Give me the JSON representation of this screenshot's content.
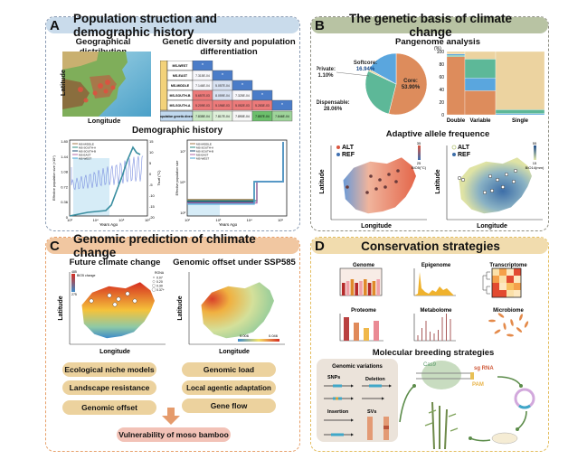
{
  "panels": {
    "a": {
      "letter": "A",
      "title": "Population struction and demographic history",
      "geo_title": "Geographical distribution",
      "geo_xlabel": "Longitude",
      "geo_ylabel": "Latitude",
      "gd_title_1": "Genetic diversity and population",
      "gd_title_2": "differentiation",
      "fst_label": "Inter-population differentiation (Fst)",
      "pi_label": "Intra-population genetic diversity (π)",
      "populations": [
        "MS-WEST",
        "MS-EAST",
        "MS-MIDDLE",
        "MS-SOUTH-B",
        "MS-SOUTH-A"
      ],
      "fst_rows": [
        [
          "*"
        ],
        [
          "7.315E-04",
          "*"
        ],
        [
          "7.146E-04",
          "5.057E-04",
          "*"
        ],
        [
          "5.657E-03",
          "8.059E-04",
          "7.325E-04",
          "*"
        ],
        [
          "5.209E-03",
          "5.196E-03",
          "5.052E-03",
          "5.283E-03",
          "*"
        ]
      ],
      "pi_values": [
        "7.835E-04",
        "7.817E-04",
        "7.890E-04",
        "7.857E-04",
        "7.846E-04"
      ],
      "demo_title": "Demographic history",
      "demo_xlabel": "Years Ago",
      "demo_legend": [
        "MS-MIDDLE",
        "MS-SOUTH-A",
        "MS-SOUTH-B",
        "MS-EAST",
        "MS-WEST"
      ],
      "demo_legend_colors": [
        "#a0784a",
        "#2c8b7f",
        "#1e4d73",
        "#b06aa8",
        "#4aa6d6"
      ],
      "demo1_ylabel": "Effective population size (×10⁴)",
      "demo1_y2label": "Tsurf (°C)",
      "demo1_yticks": [
        "1.80",
        "1.44",
        "1.08",
        "0.72",
        "0.36",
        "0"
      ],
      "demo1_y2ticks": [
        "15",
        "10",
        "5",
        "0",
        "-5",
        "-10",
        "-15",
        "-20"
      ],
      "demo1_xticks": [
        "10³",
        "10⁴",
        "10⁵",
        "10⁶"
      ],
      "demo2_ylabel": "Effective population size",
      "demo2_yticks": [
        "10⁷",
        "10⁵",
        "10³"
      ],
      "demo2_xticks": [
        "10²",
        "10³",
        "10⁴",
        "10⁵"
      ]
    },
    "b": {
      "letter": "B",
      "title": "The genetic basis of climate change",
      "pan_title": "Pangenome analysis",
      "pie": [
        {
          "label": "Core:",
          "value": "53.90%",
          "pct": 53.9,
          "color": "#dd8c5c"
        },
        {
          "label": "Dispensable:",
          "value": "28.06%",
          "pct": 28.06,
          "color": "#5db898"
        },
        {
          "label": "Private:",
          "value": "1.10%",
          "pct": 1.1,
          "color": "#e8d5a0"
        },
        {
          "label": "Softcore:",
          "value": "16.94%",
          "pct": 16.94,
          "color": "#5aa6de"
        }
      ],
      "bar_unit": "(%)",
      "bar_yticks": [
        "100",
        "80",
        "60",
        "40",
        "20",
        "0"
      ],
      "bar_categories": [
        "Double",
        "Variable",
        "Single"
      ],
      "bar_stacks": [
        [
          {
            "pct": 92,
            "color": "#dd8c5c"
          },
          {
            "pct": 2,
            "color": "#5db898"
          },
          {
            "pct": 2,
            "color": "#5aa6de"
          },
          {
            "pct": 4,
            "color": "#ecd3a0"
          }
        ],
        [
          {
            "pct": 38,
            "color": "#dd8c5c"
          },
          {
            "pct": 20,
            "color": "#5aa6de"
          },
          {
            "pct": 30,
            "color": "#5db898"
          },
          {
            "pct": 12,
            "color": "#ecd3a0"
          }
        ],
        [
          {
            "pct": 2,
            "color": "#5aa6de"
          },
          {
            "pct": 6,
            "color": "#5db898"
          },
          {
            "pct": 92,
            "color": "#ecd3a0"
          }
        ]
      ],
      "aaf_title": "Adaptive allele frequence",
      "map1_legend": [
        "ALT",
        "REF"
      ],
      "map1_scale_top": "35",
      "map1_scale_bottom": "25",
      "map1_scale_label": "BIO5(°C)",
      "map2_legend": [
        "ALT",
        "REF"
      ],
      "map2_scale_top": "55",
      "map2_scale_bottom": "15",
      "map2_scale_label": "BIO14(mm)",
      "xlabel": "Longitude",
      "ylabel": "Latitude"
    },
    "c": {
      "letter": "C",
      "title": "Genomic prediction of chlimate change",
      "fcc_title": "Future climate change",
      "go_title": "Genomic offset under SSP585",
      "fcc_scale_top": "485",
      "fcc_scale_bottom": "275",
      "fcc_scale_label": "BIO5 change",
      "rona_title": "RONA",
      "rona_values": [
        "0.07",
        "0.20",
        "0.30",
        "0.37+"
      ],
      "go_scale_min": "0.006",
      "go_scale_max": "0.046",
      "xlabel": "Longitude",
      "ylabel": "Latitude",
      "pills_left": [
        "Ecological niche models",
        "Landscape resistance",
        "Genomic offset"
      ],
      "pills_right": [
        "Genomic load",
        "Local agentic adaptation",
        "Gene flow"
      ],
      "final": "Vulnerability of moso bamboo"
    },
    "d": {
      "letter": "D",
      "title": "Conservation strategies",
      "omics": [
        "Genome",
        "Epigenome",
        "Transcriptome",
        "Proteome",
        "Metabolome",
        "Microbiome"
      ],
      "mbs_title": "Molecular breeding strategies",
      "gv_title": "Genomic variations",
      "gv_types": [
        "SNPs",
        "Deletion",
        "Insertion",
        "SVs"
      ],
      "cas9": "Cas9",
      "sgrna": "sg RNA",
      "pam": "PAM"
    }
  }
}
